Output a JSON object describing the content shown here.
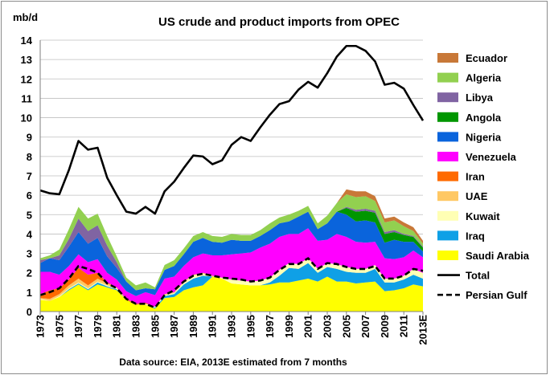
{
  "chart_data": {
    "type": "area",
    "title": "US crude and product imports from OPEC",
    "ylabel": "mb/d",
    "source": "Data source: EIA, 2013E estimated from 7 months",
    "ylim": [
      0,
      14
    ],
    "y_ticks": [
      "0",
      "1",
      "2",
      "3",
      "4",
      "5",
      "6",
      "7",
      "8",
      "9",
      "10",
      "11",
      "12",
      "13",
      "14"
    ],
    "x": [
      "1973",
      "1974",
      "1975",
      "1976",
      "1977",
      "1978",
      "1979",
      "1980",
      "1981",
      "1982",
      "1983",
      "1984",
      "1985",
      "1986",
      "1987",
      "1988",
      "1989",
      "1990",
      "1991",
      "1992",
      "1993",
      "1994",
      "1995",
      "1996",
      "1997",
      "1998",
      "1999",
      "2000",
      "2001",
      "2002",
      "2003",
      "2004",
      "2005",
      "2006",
      "2007",
      "2008",
      "2009",
      "2010",
      "2011",
      "2012",
      "2013E"
    ],
    "x_tick_labels": [
      "1973",
      "1975",
      "1977",
      "1979",
      "1981",
      "1983",
      "1985",
      "1987",
      "1989",
      "1991",
      "1993",
      "1995",
      "1997",
      "1999",
      "2001",
      "2003",
      "2005",
      "2007",
      "2009",
      "2011",
      "2013E"
    ],
    "grid": true,
    "legend_position": "right",
    "stacked_series": [
      {
        "name": "Saudi Arabia",
        "color": "#ffff00",
        "values": [
          0.6,
          0.55,
          0.75,
          1.1,
          1.4,
          1.1,
          1.4,
          1.25,
          1.1,
          0.6,
          0.35,
          0.35,
          0.15,
          0.7,
          0.75,
          1.1,
          1.25,
          1.35,
          1.8,
          1.7,
          1.45,
          1.4,
          1.35,
          1.35,
          1.4,
          1.5,
          1.5,
          1.6,
          1.7,
          1.55,
          1.8,
          1.55,
          1.55,
          1.45,
          1.5,
          1.55,
          1.05,
          1.1,
          1.2,
          1.4,
          1.3
        ]
      },
      {
        "name": "Iraq",
        "color": "#0fa0e6",
        "values": [
          0.0,
          0.0,
          0.0,
          0.05,
          0.05,
          0.05,
          0.1,
          0.05,
          0.05,
          0.0,
          0.0,
          0.0,
          0.05,
          0.1,
          0.15,
          0.3,
          0.45,
          0.5,
          0.0,
          0.0,
          0.0,
          0.0,
          0.0,
          0.0,
          0.1,
          0.35,
          0.75,
          0.6,
          0.8,
          0.45,
          0.5,
          0.65,
          0.5,
          0.55,
          0.5,
          0.65,
          0.45,
          0.4,
          0.45,
          0.5,
          0.4
        ]
      },
      {
        "name": "Kuwait",
        "color": "#ffffb4",
        "values": [
          0.05,
          0.0,
          0.05,
          0.05,
          0.05,
          0.05,
          0.05,
          0.05,
          0.05,
          0.0,
          0.0,
          0.05,
          0.05,
          0.05,
          0.05,
          0.1,
          0.15,
          0.1,
          0.0,
          0.05,
          0.2,
          0.2,
          0.2,
          0.25,
          0.25,
          0.3,
          0.25,
          0.25,
          0.25,
          0.2,
          0.2,
          0.25,
          0.25,
          0.2,
          0.2,
          0.2,
          0.2,
          0.2,
          0.2,
          0.3,
          0.3
        ]
      },
      {
        "name": "UAE",
        "color": "#ffc864",
        "values": [
          0.05,
          0.1,
          0.1,
          0.15,
          0.2,
          0.15,
          0.15,
          0.1,
          0.05,
          0.0,
          0.0,
          0.0,
          0.0,
          0.05,
          0.05,
          0.05,
          0.05,
          0.05,
          0.05,
          0.0,
          0.0,
          0.0,
          0.0,
          0.0,
          0.0,
          0.0,
          0.0,
          0.0,
          0.0,
          0.0,
          0.0,
          0.0,
          0.0,
          0.0,
          0.0,
          0.0,
          0.0,
          0.0,
          0.0,
          0.0,
          0.0
        ]
      },
      {
        "name": "Iran",
        "color": "#ff6a00",
        "values": [
          0.2,
          0.45,
          0.3,
          0.3,
          0.55,
          0.55,
          0.3,
          0.05,
          0.0,
          0.05,
          0.05,
          0.05,
          0.0,
          0.0,
          0.0,
          0.0,
          0.0,
          0.0,
          0.0,
          0.0,
          0.0,
          0.0,
          0.0,
          0.0,
          0.0,
          0.0,
          0.0,
          0.0,
          0.0,
          0.0,
          0.0,
          0.0,
          0.0,
          0.0,
          0.0,
          0.0,
          0.0,
          0.0,
          0.0,
          0.0,
          0.0
        ]
      },
      {
        "name": "Venezuela",
        "color": "#ff00ff",
        "values": [
          1.15,
          0.95,
          0.7,
          0.7,
          0.7,
          0.65,
          0.7,
          0.5,
          0.4,
          0.4,
          0.4,
          0.55,
          0.6,
          0.8,
          0.8,
          0.8,
          0.9,
          1.0,
          1.05,
          1.15,
          1.3,
          1.4,
          1.5,
          1.7,
          1.75,
          1.7,
          1.5,
          1.55,
          1.55,
          1.45,
          1.2,
          1.55,
          1.55,
          1.4,
          1.35,
          1.2,
          1.05,
          1.0,
          0.95,
          0.95,
          0.8
        ]
      },
      {
        "name": "Nigeria",
        "color": "#0a64dc",
        "values": [
          0.45,
          0.7,
          0.75,
          1.0,
          1.15,
          0.95,
          1.1,
          0.85,
          0.6,
          0.5,
          0.3,
          0.2,
          0.3,
          0.45,
          0.55,
          0.6,
          0.8,
          0.8,
          0.7,
          0.65,
          0.75,
          0.65,
          0.6,
          0.6,
          0.7,
          0.7,
          0.65,
          0.9,
          0.85,
          0.6,
          0.85,
          1.15,
          1.15,
          1.05,
          1.15,
          1.0,
          0.8,
          1.0,
          0.8,
          0.45,
          0.3
        ]
      },
      {
        "name": "Angola",
        "color": "#009600",
        "values": [
          0.0,
          0.0,
          0.0,
          0.0,
          0.0,
          0.0,
          0.0,
          0.0,
          0.0,
          0.0,
          0.0,
          0.0,
          0.0,
          0.0,
          0.0,
          0.0,
          0.0,
          0.0,
          0.0,
          0.0,
          0.0,
          0.0,
          0.0,
          0.0,
          0.0,
          0.0,
          0.0,
          0.0,
          0.0,
          0.0,
          0.0,
          0.0,
          0.35,
          0.5,
          0.5,
          0.5,
          0.45,
          0.4,
          0.35,
          0.25,
          0.2
        ]
      },
      {
        "name": "Libya",
        "color": "#8064a2",
        "values": [
          0.15,
          0.0,
          0.25,
          0.4,
          0.7,
          0.65,
          0.65,
          0.55,
          0.3,
          0.0,
          0.0,
          0.0,
          0.0,
          0.0,
          0.0,
          0.0,
          0.0,
          0.0,
          0.0,
          0.0,
          0.0,
          0.0,
          0.0,
          0.0,
          0.0,
          0.0,
          0.0,
          0.0,
          0.0,
          0.0,
          0.0,
          0.0,
          0.05,
          0.1,
          0.1,
          0.1,
          0.1,
          0.1,
          0.05,
          0.05,
          0.05
        ]
      },
      {
        "name": "Algeria",
        "color": "#92d050",
        "values": [
          0.1,
          0.15,
          0.3,
          0.5,
          0.6,
          0.65,
          0.6,
          0.5,
          0.3,
          0.2,
          0.25,
          0.3,
          0.1,
          0.25,
          0.3,
          0.3,
          0.3,
          0.3,
          0.3,
          0.3,
          0.3,
          0.3,
          0.3,
          0.3,
          0.35,
          0.3,
          0.35,
          0.3,
          0.3,
          0.3,
          0.4,
          0.45,
          0.65,
          0.65,
          0.65,
          0.5,
          0.5,
          0.5,
          0.4,
          0.25,
          0.15
        ]
      },
      {
        "name": "Ecuador",
        "color": "#c87838",
        "values": [
          0.0,
          0.0,
          0.0,
          0.0,
          0.0,
          0.0,
          0.0,
          0.0,
          0.0,
          0.0,
          0.0,
          0.0,
          0.0,
          0.0,
          0.0,
          0.0,
          0.0,
          0.0,
          0.0,
          0.0,
          0.0,
          0.0,
          0.0,
          0.0,
          0.0,
          0.0,
          0.0,
          0.0,
          0.0,
          0.0,
          0.0,
          0.0,
          0.25,
          0.3,
          0.25,
          0.25,
          0.2,
          0.2,
          0.2,
          0.2,
          0.15
        ]
      }
    ],
    "line_series": [
      {
        "name": "Total",
        "color": "#000000",
        "dash": "solid",
        "values": [
          6.25,
          6.1,
          6.05,
          7.3,
          8.8,
          8.35,
          8.45,
          6.9,
          6.0,
          5.15,
          5.05,
          5.4,
          5.05,
          6.2,
          6.7,
          7.4,
          8.05,
          8.0,
          7.6,
          7.8,
          8.6,
          9.0,
          8.8,
          9.5,
          10.15,
          10.7,
          10.85,
          11.45,
          11.85,
          11.55,
          12.3,
          13.15,
          13.7,
          13.7,
          13.45,
          12.9,
          11.7,
          11.8,
          11.5,
          10.65,
          9.85
        ]
      },
      {
        "name": "Persian Gulf",
        "color": "#000000",
        "dash": "dashed",
        "values": [
          0.85,
          1.0,
          1.2,
          1.7,
          2.35,
          2.2,
          2.0,
          1.45,
          1.2,
          0.65,
          0.4,
          0.4,
          0.2,
          0.85,
          1.1,
          1.55,
          1.85,
          1.95,
          1.85,
          1.75,
          1.7,
          1.65,
          1.55,
          1.6,
          1.75,
          2.15,
          2.45,
          2.45,
          2.75,
          2.2,
          2.5,
          2.45,
          2.3,
          2.2,
          2.2,
          2.35,
          1.7,
          1.7,
          1.85,
          2.2,
          2.1
        ]
      }
    ]
  }
}
